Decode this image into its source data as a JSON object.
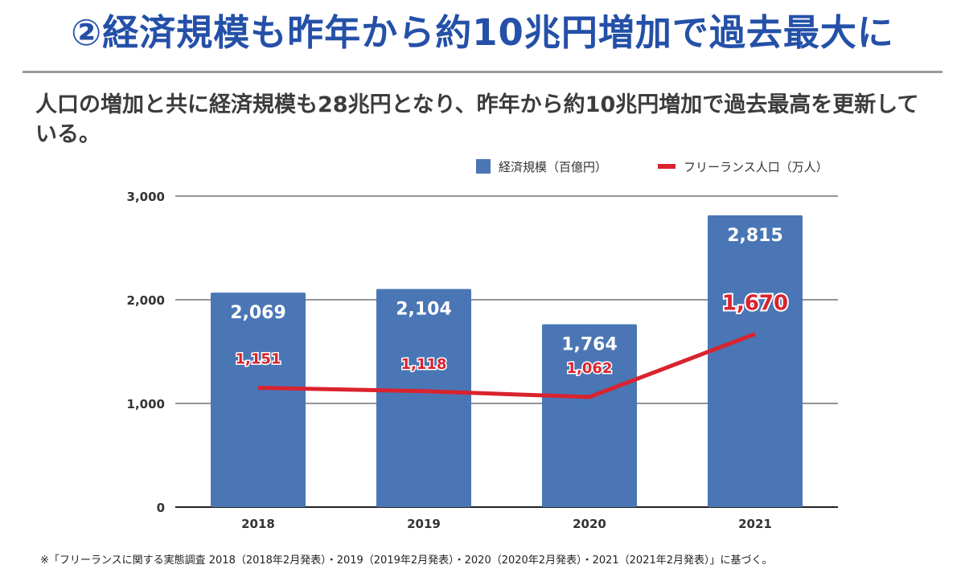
{
  "header": {
    "title": "②経済規模も昨年から約10兆円増加で過去最大に",
    "subtitle": "人口の増加と共に経済規模も28兆円となり、昨年から約10兆円増加で過去最高を更新している。"
  },
  "footnote": "※「フリーランスに関する実態調査 2018（2018年2月発表）・2019（2019年2月発表）・2020（2020年2月発表）・2021（2021年2月発表）」に基づく。",
  "colors": {
    "title": "#2450a8",
    "bar": "#4a76b5",
    "line": "#d9232e",
    "bar_label": "#ffffff",
    "line_label": "#d9232e",
    "axis_text": "#333333",
    "grid": "#555555"
  },
  "chart_data": {
    "type": "bar",
    "categories": [
      "2018",
      "2019",
      "2020",
      "2021"
    ],
    "series": [
      {
        "name": "経済規模（百億円）",
        "type": "bar",
        "values": [
          2069,
          2104,
          1764,
          2815
        ],
        "labels": [
          "2,069",
          "2,104",
          "1,764",
          "2,815"
        ]
      },
      {
        "name": "フリーランス人口（万人）",
        "type": "line",
        "values": [
          1151,
          1118,
          1062,
          1670
        ],
        "labels": [
          "1,151",
          "1,118",
          "1,062",
          "1,670"
        ]
      }
    ],
    "ylim": [
      0,
      3000
    ],
    "yticks": [
      0,
      1000,
      2000,
      3000
    ],
    "ytick_labels": [
      "0",
      "1,000",
      "2,000",
      "3,000"
    ],
    "grid": true,
    "legend_position": "top-right",
    "xlabel": "",
    "ylabel": ""
  }
}
